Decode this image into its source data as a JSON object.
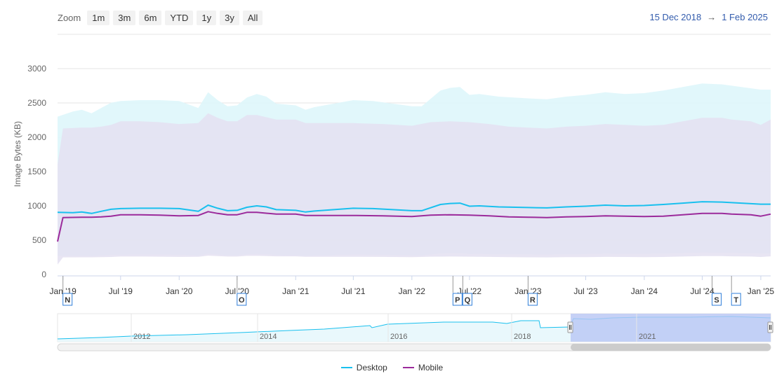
{
  "toolbar": {
    "zoom_label": "Zoom",
    "buttons": [
      "1m",
      "3m",
      "6m",
      "YTD",
      "1y",
      "3y",
      "All"
    ]
  },
  "range": {
    "from": "15 Dec 2018",
    "arrow": "→",
    "to": "1 Feb 2025"
  },
  "colors": {
    "desktop": "#19c0ee",
    "mobile": "#9b2a9b",
    "desktop_band": "#def6fb",
    "mobile_band": "#e4e1f1",
    "navigator_fill": "#b8c6f4",
    "flag_text": "#333333",
    "range_text": "#335cad"
  },
  "chart_data": {
    "type": "line",
    "ylabel": "Image Bytes (KB)",
    "ylim": [
      0,
      3000
    ],
    "yticks": [
      0,
      500,
      1000,
      1500,
      2000,
      2500,
      3000
    ],
    "xlim": [
      "2018-12-15",
      "2025-02-01"
    ],
    "xticks": [
      {
        "date": "2019-01-01",
        "label": "Jan '19"
      },
      {
        "date": "2019-07-01",
        "label": "Jul '19"
      },
      {
        "date": "2020-01-01",
        "label": "Jan '20"
      },
      {
        "date": "2020-07-01",
        "label": "Jul '20"
      },
      {
        "date": "2021-01-01",
        "label": "Jan '21"
      },
      {
        "date": "2021-07-01",
        "label": "Jul '21"
      },
      {
        "date": "2022-01-01",
        "label": "Jan '22"
      },
      {
        "date": "2022-07-01",
        "label": "Jul '22"
      },
      {
        "date": "2023-01-01",
        "label": "Jan '23"
      },
      {
        "date": "2023-07-01",
        "label": "Jul '23"
      },
      {
        "date": "2024-01-01",
        "label": "Jan '24"
      },
      {
        "date": "2024-07-01",
        "label": "Jul '24"
      },
      {
        "date": "2025-01-01",
        "label": "Jan '25"
      }
    ],
    "grid": true,
    "legend_position": "bottom-center",
    "series": [
      {
        "name": "Desktop",
        "x": [
          "2018-12-15",
          "2019-02-01",
          "2019-03-01",
          "2019-04-01",
          "2019-05-01",
          "2019-06-01",
          "2019-07-01",
          "2019-09-01",
          "2019-11-01",
          "2020-01-01",
          "2020-03-01",
          "2020-04-01",
          "2020-05-01",
          "2020-06-01",
          "2020-07-01",
          "2020-08-01",
          "2020-09-01",
          "2020-10-01",
          "2020-11-01",
          "2021-01-01",
          "2021-02-01",
          "2021-03-01",
          "2021-05-01",
          "2021-07-01",
          "2021-09-01",
          "2021-11-01",
          "2022-01-01",
          "2022-02-01",
          "2022-04-01",
          "2022-05-01",
          "2022-06-01",
          "2022-07-01",
          "2022-08-01",
          "2022-10-01",
          "2023-01-01",
          "2023-03-01",
          "2023-05-01",
          "2023-07-01",
          "2023-09-01",
          "2023-11-01",
          "2024-01-01",
          "2024-03-01",
          "2024-05-01",
          "2024-07-01",
          "2024-09-01",
          "2024-11-01",
          "2025-01-01",
          "2025-02-01"
        ],
        "y": [
          905,
          900,
          910,
          890,
          920,
          950,
          960,
          965,
          965,
          960,
          920,
          1010,
          965,
          930,
          935,
          980,
          1000,
          985,
          945,
          935,
          910,
          925,
          945,
          965,
          960,
          945,
          930,
          930,
          1020,
          1035,
          1040,
          995,
          1000,
          985,
          975,
          970,
          985,
          995,
          1010,
          1000,
          1005,
          1020,
          1040,
          1060,
          1055,
          1040,
          1025,
          1025
        ]
      },
      {
        "name": "Mobile",
        "x": [
          "2018-12-15",
          "2019-01-01",
          "2019-03-01",
          "2019-04-01",
          "2019-05-01",
          "2019-06-01",
          "2019-07-01",
          "2019-09-01",
          "2019-11-01",
          "2020-01-01",
          "2020-03-01",
          "2020-04-01",
          "2020-05-01",
          "2020-06-01",
          "2020-07-01",
          "2020-08-01",
          "2020-09-01",
          "2020-11-01",
          "2021-01-01",
          "2021-02-01",
          "2021-04-01",
          "2021-07-01",
          "2021-10-01",
          "2022-01-01",
          "2022-03-01",
          "2022-05-01",
          "2022-07-01",
          "2022-09-01",
          "2022-11-01",
          "2023-01-01",
          "2023-03-01",
          "2023-05-01",
          "2023-07-01",
          "2023-09-01",
          "2023-11-01",
          "2024-01-01",
          "2024-03-01",
          "2024-05-01",
          "2024-07-01",
          "2024-09-01",
          "2024-10-01",
          "2024-12-01",
          "2025-01-01",
          "2025-02-01"
        ],
        "y": [
          480,
          830,
          835,
          835,
          840,
          850,
          870,
          870,
          865,
          855,
          860,
          915,
          890,
          870,
          870,
          905,
          905,
          880,
          880,
          860,
          860,
          860,
          855,
          845,
          865,
          870,
          865,
          855,
          840,
          835,
          830,
          840,
          845,
          855,
          850,
          845,
          850,
          870,
          890,
          890,
          880,
          870,
          850,
          880
        ]
      }
    ],
    "flags": [
      {
        "date": "2019-01-01",
        "label": "N"
      },
      {
        "date": "2020-07-01",
        "label": "O"
      },
      {
        "date": "2022-05-10",
        "label": "P"
      },
      {
        "date": "2022-06-10",
        "label": "Q"
      },
      {
        "date": "2023-01-01",
        "label": "R"
      },
      {
        "date": "2024-08-01",
        "label": "S"
      },
      {
        "date": "2024-10-01",
        "label": "T"
      }
    ],
    "navigator": {
      "labels": [
        "2012",
        "2014",
        "2016",
        "2018",
        "2021"
      ]
    }
  },
  "legend": [
    {
      "label": "Desktop"
    },
    {
      "label": "Mobile"
    }
  ]
}
